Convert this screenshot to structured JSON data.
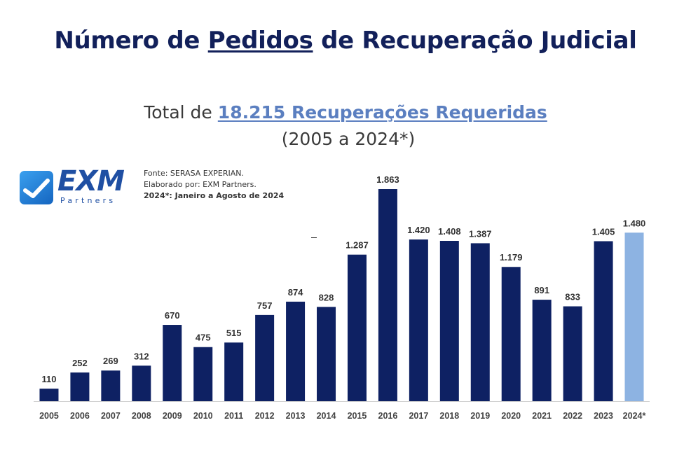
{
  "header": {
    "title_before": "Número de",
    "title_highlight": "Pedidos",
    "title_after": "de Recuperação Judicial",
    "subtitle_prefix": "Total de",
    "subtitle_highlight": "18.215 Recuperações Requeridas",
    "period": "(2005 a 2024*)"
  },
  "logo": {
    "name": "EXM",
    "sub": "Partners"
  },
  "source": {
    "line1": "Fonte: SERASA EXPERIAN.",
    "line2": "Elaborado por: EXM Partners.",
    "line3": "2024*: Janeiro a Agosto de 2024"
  },
  "colors": {
    "bar": "#0e2163",
    "bar_highlight": "#8db3e2",
    "title": "#12205a",
    "accent": "#5b7fc0"
  },
  "chart_data": {
    "type": "bar",
    "title": "Número de Pedidos de Recuperação Judicial",
    "categories": [
      "2005",
      "2006",
      "2007",
      "2008",
      "2009",
      "2010",
      "2011",
      "2012",
      "2013",
      "2014",
      "2015",
      "2016",
      "2017",
      "2018",
      "2019",
      "2020",
      "2021",
      "2022",
      "2023",
      "2024*"
    ],
    "values": [
      110,
      252,
      269,
      312,
      670,
      475,
      515,
      757,
      874,
      828,
      1287,
      1863,
      1420,
      1408,
      1387,
      1179,
      891,
      833,
      1405,
      1480
    ],
    "value_labels": [
      "110",
      "252",
      "269",
      "312",
      "670",
      "475",
      "515",
      "757",
      "874",
      "828",
      "1.287",
      "1.863",
      "1.420",
      "1.408",
      "1.387",
      "1.179",
      "891",
      "833",
      "1.405",
      "1.480"
    ],
    "highlight_category": "2024*",
    "xlabel": "",
    "ylabel": "",
    "ylim": [
      0,
      1863
    ],
    "grid": false,
    "legend": "none"
  }
}
